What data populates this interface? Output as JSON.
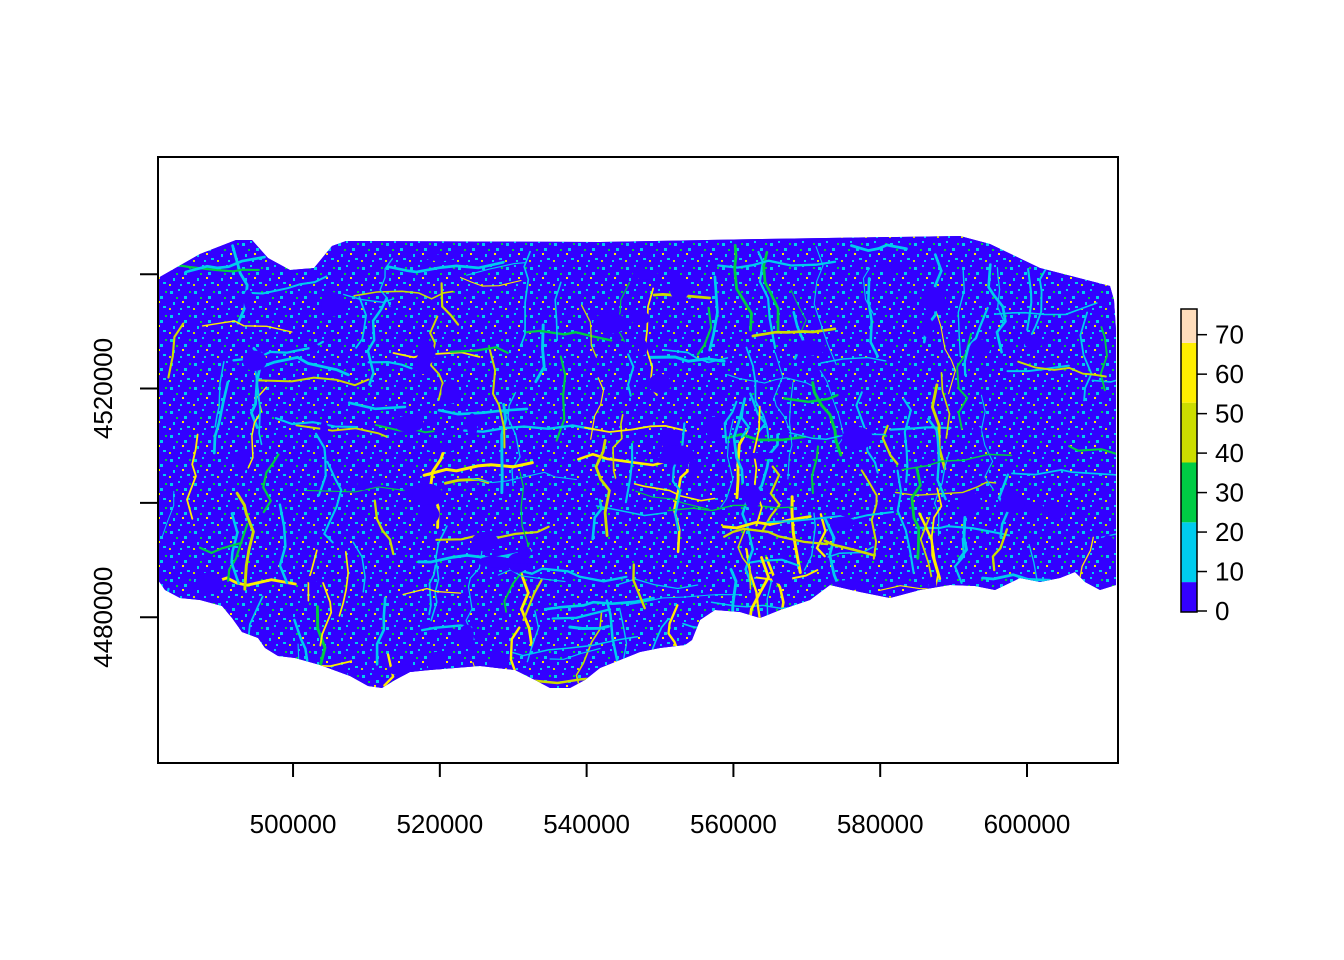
{
  "chart_data": {
    "type": "heatmap",
    "title": "",
    "xlabel": "",
    "ylabel": "",
    "xlim": [
      481600,
      612400
    ],
    "ylim": [
      4454500,
      4560500
    ],
    "x_ticks": [
      500000,
      520000,
      540000,
      560000,
      580000,
      600000
    ],
    "x_tick_labels": [
      "500000",
      "520000",
      "540000",
      "560000",
      "580000",
      "600000"
    ],
    "y_ticks": [
      4480000,
      4500000,
      4520000,
      4540000
    ],
    "y_tick_labels": [
      "4480000",
      "",
      "4520000",
      ""
    ],
    "grid": false,
    "legend_position": "right",
    "legend": {
      "breaks": [
        0,
        7,
        10,
        20,
        30,
        38,
        40,
        50,
        60,
        68,
        70,
        76
      ],
      "tick_values": [
        0,
        10,
        20,
        30,
        40,
        50,
        60,
        70
      ],
      "tick_labels": [
        "0",
        "10",
        "20",
        "30",
        "40",
        "50",
        "60",
        "70"
      ],
      "bins": [
        {
          "from": 0,
          "to": 7.5,
          "color": "#3300ff"
        },
        {
          "from": 7.5,
          "to": 22.5,
          "color": "#00ccee"
        },
        {
          "from": 22.5,
          "to": 37.5,
          "color": "#00cc44"
        },
        {
          "from": 37.5,
          "to": 52.5,
          "color": "#ccdd00"
        },
        {
          "from": 52.5,
          "to": 67.5,
          "color": "#ffee00"
        },
        {
          "from": 67.5,
          "to": 76,
          "color": "#ffddbb"
        }
      ]
    },
    "raster_extent": {
      "x": [
        481600,
        612400
      ],
      "y": [
        4477500,
        4545500
      ]
    }
  }
}
